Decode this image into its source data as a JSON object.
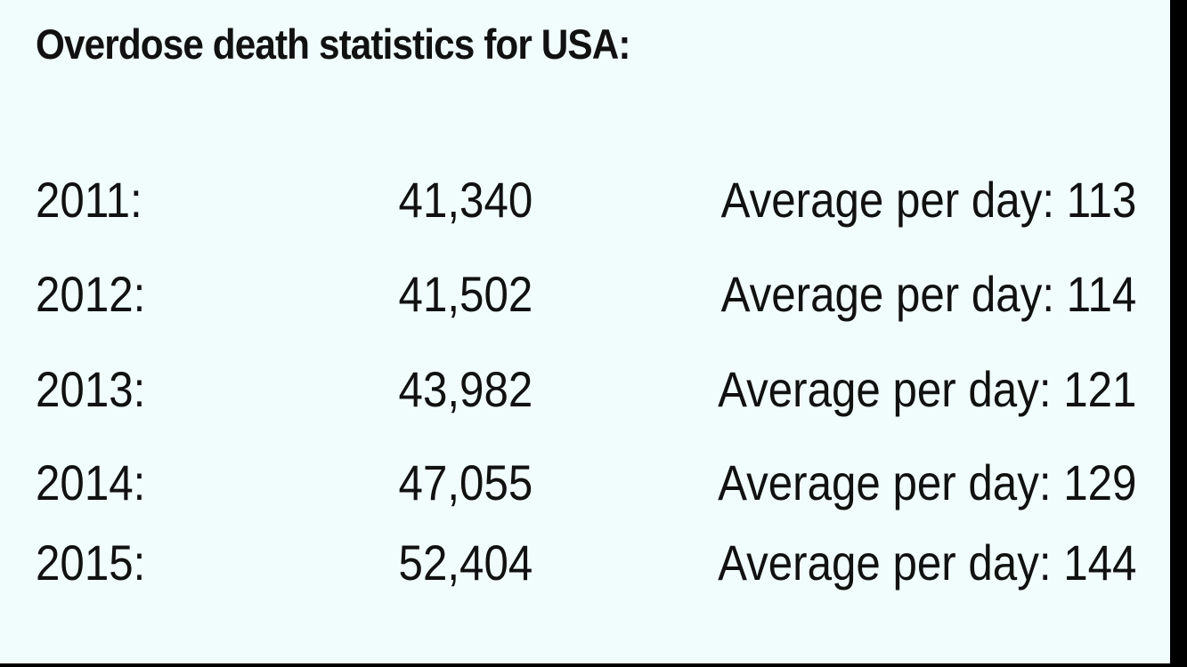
{
  "title": "Overdose death statistics for USA:",
  "rows": [
    {
      "year": "2011:",
      "deaths": "41,340",
      "average_label": "Average per day:",
      "average": "113"
    },
    {
      "year": "2012:",
      "deaths": "41,502",
      "average_label": "Average per day:",
      "average": "114"
    },
    {
      "year": "2013:",
      "deaths": "43,982",
      "average_label": "Average per day:",
      "average": "121"
    },
    {
      "year": "2014:",
      "deaths": "47,055",
      "average_label": "Average per day:",
      "average": "129"
    },
    {
      "year": "2015:",
      "deaths": "52,404",
      "average_label": "Average per day:",
      "average": "144"
    }
  ],
  "colors": {
    "background": "#f1fdfd",
    "text": "#111111",
    "border": "#000000"
  }
}
